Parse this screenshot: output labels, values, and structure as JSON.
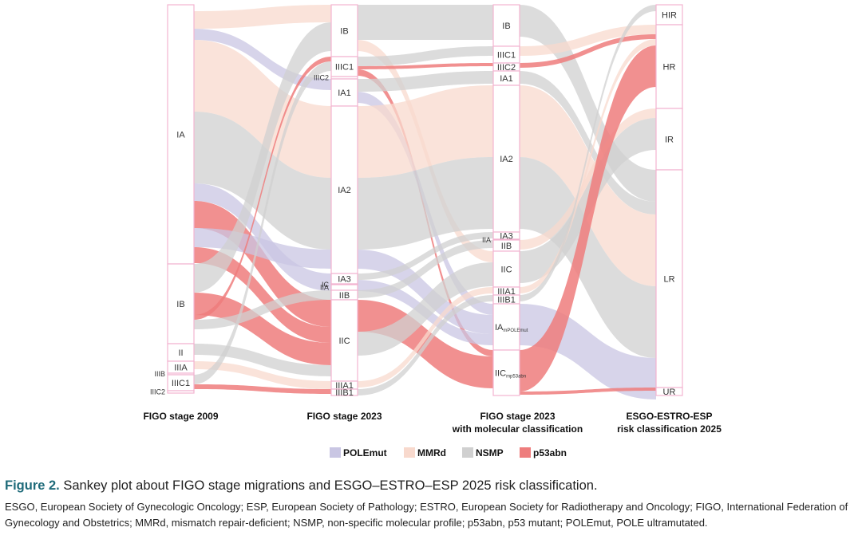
{
  "legend": [
    {
      "key": "POLEmut",
      "label": "POLEmut",
      "color": "#c9c6e3"
    },
    {
      "key": "MMRd",
      "label": "MMRd",
      "color": "#f8d9cd"
    },
    {
      "key": "NSMP",
      "label": "NSMP",
      "color": "#d0d0d0"
    },
    {
      "key": "p53abn",
      "label": "p53abn",
      "color": "#ee7d7d"
    }
  ],
  "columns": [
    {
      "title1": "FIGO stage 2009",
      "title2": "",
      "nodes": [
        {
          "label": "IA",
          "top": 0,
          "bottom": 325
        },
        {
          "label": "IB",
          "top": 325,
          "bottom": 425
        },
        {
          "label": "II",
          "top": 425,
          "bottom": 447
        },
        {
          "label": "IIIA",
          "top": 447,
          "bottom": 462
        },
        {
          "label": "IIIB",
          "top": 462,
          "bottom": 464,
          "side": true
        },
        {
          "label": "IIIC1",
          "top": 464,
          "bottom": 484
        },
        {
          "label": "IIIC2",
          "top": 484,
          "bottom": 487,
          "side": true
        }
      ]
    },
    {
      "title1": "FIGO stage 2023",
      "title2": "",
      "nodes": [
        {
          "label": "IB",
          "top": 0,
          "bottom": 65
        },
        {
          "label": "IIIC1",
          "top": 65,
          "bottom": 90
        },
        {
          "label": "IIIC2",
          "top": 90,
          "bottom": 93,
          "side": true
        },
        {
          "label": "IA1",
          "top": 93,
          "bottom": 127
        },
        {
          "label": "IA2",
          "top": 127,
          "bottom": 337
        },
        {
          "label": "IA3",
          "top": 337,
          "bottom": 350
        },
        {
          "label": "IC",
          "top": 350,
          "bottom": 351,
          "side": true
        },
        {
          "label": "IIA",
          "top": 351,
          "bottom": 358,
          "side": true
        },
        {
          "label": "IIB",
          "top": 358,
          "bottom": 370
        },
        {
          "label": "IIC",
          "top": 370,
          "bottom": 472
        },
        {
          "label": "IIIA1",
          "top": 472,
          "bottom": 482
        },
        {
          "label": "IIIB1",
          "top": 482,
          "bottom": 490
        }
      ]
    },
    {
      "title1": "FIGO stage 2023",
      "title2": "with molecular classification",
      "nodes": [
        {
          "label": "IB",
          "top": 0,
          "bottom": 52
        },
        {
          "label": "IIIC1",
          "top": 52,
          "bottom": 73
        },
        {
          "label": "IIIC2",
          "top": 73,
          "bottom": 83
        },
        {
          "label": "IA1",
          "top": 83,
          "bottom": 101
        },
        {
          "label": "IA2",
          "top": 101,
          "bottom": 285
        },
        {
          "label": "IA3",
          "top": 285,
          "bottom": 294
        },
        {
          "label": "IIA",
          "top": 294,
          "bottom": 295,
          "side": true
        },
        {
          "label": "IIB",
          "top": 295,
          "bottom": 309
        },
        {
          "label": "IIC",
          "top": 309,
          "bottom": 354
        },
        {
          "label": "IIIA1",
          "top": 354,
          "bottom": 364
        },
        {
          "label": "IIIB1",
          "top": 364,
          "bottom": 375
        },
        {
          "label": "IA",
          "sub": "mPOLEmut",
          "top": 375,
          "bottom": 433
        },
        {
          "label": "IIC",
          "sub": "mp53abn",
          "top": 433,
          "bottom": 490
        }
      ]
    },
    {
      "title1": "ESGO-ESTRO-ESP",
      "title2": "risk classification 2025",
      "nodes": [
        {
          "label": "HIR",
          "top": 0,
          "bottom": 25
        },
        {
          "label": "HR",
          "top": 25,
          "bottom": 130
        },
        {
          "label": "IR",
          "top": 130,
          "bottom": 207
        },
        {
          "label": "LR",
          "top": 207,
          "bottom": 480
        },
        {
          "label": "UR",
          "top": 480,
          "bottom": 490
        }
      ]
    }
  ],
  "flows": [
    {
      "from": [
        0,
        0,
        8
      ],
      "to": [
        1,
        0,
        0
      ],
      "w": 22,
      "type": "MMRd"
    },
    {
      "from": [
        0,
        0,
        30
      ],
      "to": [
        1,
        3,
        0
      ],
      "w": 14,
      "type": "POLEmut"
    },
    {
      "from": [
        0,
        0,
        44
      ],
      "to": [
        1,
        4,
        0
      ],
      "w": 90,
      "type": "MMRd"
    },
    {
      "from": [
        0,
        0,
        134
      ],
      "to": [
        1,
        4,
        90
      ],
      "w": 90,
      "type": "NSMP"
    },
    {
      "from": [
        0,
        0,
        224
      ],
      "to": [
        1,
        5,
        0
      ],
      "w": 22,
      "type": "POLEmut"
    },
    {
      "from": [
        0,
        0,
        246
      ],
      "to": [
        1,
        9,
        0
      ],
      "w": 34,
      "type": "p53abn"
    },
    {
      "from": [
        0,
        0,
        280
      ],
      "to": [
        1,
        4,
        180
      ],
      "w": 24,
      "type": "POLEmut"
    },
    {
      "from": [
        0,
        0,
        304
      ],
      "to": [
        1,
        9,
        34
      ],
      "w": 20,
      "type": "p53abn"
    },
    {
      "from": [
        0,
        1,
        0
      ],
      "to": [
        1,
        0,
        22
      ],
      "w": 36,
      "type": "NSMP"
    },
    {
      "from": [
        0,
        1,
        36
      ],
      "to": [
        1,
        9,
        54
      ],
      "w": 28,
      "type": "p53abn"
    },
    {
      "from": [
        0,
        1,
        64
      ],
      "to": [
        1,
        1,
        0
      ],
      "w": 6,
      "type": "p53abn"
    },
    {
      "from": [
        0,
        1,
        70
      ],
      "to": [
        1,
        8,
        0
      ],
      "w": 12,
      "type": "NSMP"
    },
    {
      "from": [
        0,
        2,
        0
      ],
      "to": [
        1,
        9,
        82
      ],
      "w": 14,
      "type": "NSMP"
    },
    {
      "from": [
        0,
        3,
        0
      ],
      "to": [
        1,
        10,
        0
      ],
      "w": 10,
      "type": "MMRd"
    },
    {
      "from": [
        0,
        5,
        0
      ],
      "to": [
        1,
        1,
        6
      ],
      "w": 12,
      "type": "NSMP"
    },
    {
      "from": [
        0,
        5,
        12
      ],
      "to": [
        1,
        11,
        0
      ],
      "w": 6,
      "type": "p53abn"
    },
    {
      "from": [
        1,
        0,
        0
      ],
      "to": [
        2,
        0,
        0
      ],
      "w": 44,
      "type": "NSMP"
    },
    {
      "from": [
        1,
        0,
        44
      ],
      "to": [
        2,
        8,
        0
      ],
      "w": 14,
      "type": "MMRd"
    },
    {
      "from": [
        1,
        1,
        0
      ],
      "to": [
        2,
        1,
        0
      ],
      "w": 12,
      "type": "NSMP"
    },
    {
      "from": [
        1,
        1,
        12
      ],
      "to": [
        2,
        2,
        0
      ],
      "w": 4,
      "type": "p53abn"
    },
    {
      "from": [
        1,
        1,
        16
      ],
      "to": [
        2,
        12,
        0
      ],
      "w": 8,
      "type": "p53abn"
    },
    {
      "from": [
        1,
        3,
        0
      ],
      "to": [
        2,
        3,
        0
      ],
      "w": 16,
      "type": "NSMP"
    },
    {
      "from": [
        1,
        3,
        16
      ],
      "to": [
        2,
        11,
        0
      ],
      "w": 14,
      "type": "POLEmut"
    },
    {
      "from": [
        1,
        4,
        0
      ],
      "to": [
        2,
        4,
        0
      ],
      "w": 90,
      "type": "MMRd"
    },
    {
      "from": [
        1,
        4,
        90
      ],
      "to": [
        2,
        4,
        90
      ],
      "w": 90,
      "type": "NSMP"
    },
    {
      "from": [
        1,
        4,
        180
      ],
      "to": [
        2,
        11,
        14
      ],
      "w": 24,
      "type": "POLEmut"
    },
    {
      "from": [
        1,
        5,
        0
      ],
      "to": [
        2,
        5,
        0
      ],
      "w": 8,
      "type": "NSMP"
    },
    {
      "from": [
        1,
        5,
        8
      ],
      "to": [
        2,
        11,
        38
      ],
      "w": 14,
      "type": "POLEmut"
    },
    {
      "from": [
        1,
        8,
        0
      ],
      "to": [
        2,
        7,
        0
      ],
      "w": 10,
      "type": "NSMP"
    },
    {
      "from": [
        1,
        9,
        0
      ],
      "to": [
        2,
        12,
        8
      ],
      "w": 40,
      "type": "p53abn"
    },
    {
      "from": [
        1,
        9,
        40
      ],
      "to": [
        2,
        8,
        14
      ],
      "w": 30,
      "type": "NSMP"
    },
    {
      "from": [
        1,
        10,
        0
      ],
      "to": [
        2,
        9,
        0
      ],
      "w": 8,
      "type": "MMRd"
    },
    {
      "from": [
        1,
        11,
        0
      ],
      "to": [
        2,
        10,
        0
      ],
      "w": 8,
      "type": "NSMP"
    },
    {
      "from": [
        2,
        0,
        0
      ],
      "to": [
        3,
        3,
        0
      ],
      "w": 40,
      "type": "NSMP"
    },
    {
      "from": [
        2,
        1,
        0
      ],
      "to": [
        3,
        1,
        0
      ],
      "w": 12,
      "type": "MMRd"
    },
    {
      "from": [
        2,
        2,
        0
      ],
      "to": [
        3,
        1,
        12
      ],
      "w": 6,
      "type": "p53abn"
    },
    {
      "from": [
        2,
        3,
        0
      ],
      "to": [
        3,
        3,
        40
      ],
      "w": 16,
      "type": "NSMP"
    },
    {
      "from": [
        2,
        4,
        0
      ],
      "to": [
        3,
        3,
        56
      ],
      "w": 90,
      "type": "MMRd"
    },
    {
      "from": [
        2,
        4,
        90
      ],
      "to": [
        3,
        3,
        146
      ],
      "w": 90,
      "type": "NSMP"
    },
    {
      "from": [
        2,
        7,
        0
      ],
      "to": [
        3,
        2,
        0
      ],
      "w": 12,
      "type": "MMRd"
    },
    {
      "from": [
        2,
        8,
        0
      ],
      "to": [
        3,
        2,
        12
      ],
      "w": 40,
      "type": "NSMP"
    },
    {
      "from": [
        2,
        9,
        0
      ],
      "to": [
        3,
        1,
        18
      ],
      "w": 8,
      "type": "MMRd"
    },
    {
      "from": [
        2,
        10,
        0
      ],
      "to": [
        3,
        0,
        0
      ],
      "w": 8,
      "type": "NSMP"
    },
    {
      "from": [
        2,
        11,
        0
      ],
      "to": [
        3,
        3,
        236
      ],
      "w": 52,
      "type": "POLEmut"
    },
    {
      "from": [
        2,
        12,
        0
      ],
      "to": [
        3,
        1,
        26
      ],
      "w": 52,
      "type": "p53abn"
    },
    {
      "from": [
        2,
        12,
        52
      ],
      "to": [
        3,
        4,
        0
      ],
      "w": 4,
      "type": "p53abn"
    }
  ],
  "caption": {
    "fig_label": "Figure 2.",
    "title": " Sankey plot about FIGO stage migrations and ESGO–ESTRO–ESP 2025 risk classification.",
    "body": "ESGO, European Society of Gynecologic Oncology; ESP, European Society of Pathology; ESTRO, European Society for Radiotherapy and Oncology; FIGO, International Federation of Gynecology and Obstetrics; MMRd, mismatch repair-deficient; NSMP, non-specific molecular profile; p53abn, p53 mutant; POLEmut, POLE ultramutated."
  }
}
